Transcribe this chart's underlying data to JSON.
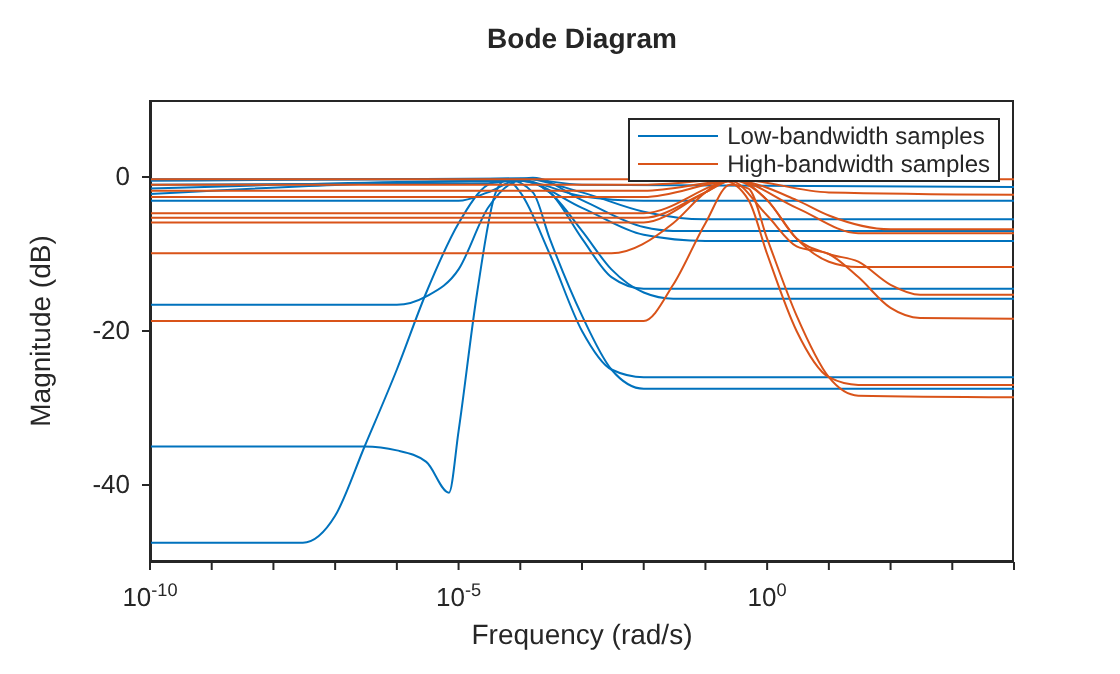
{
  "chart_data": {
    "type": "line",
    "title": "Bode Diagram",
    "xlabel": "Frequency (rad/s)",
    "ylabel": "Magnitude (dB)",
    "log": "x",
    "grid": false,
    "legend": "top right",
    "marker": "none",
    "line_style": "solid",
    "xlim": [
      1e-10,
      10000.0
    ],
    "ylim": [
      -50,
      10
    ],
    "xticks": [
      {
        "value": 1e-10,
        "label": "10$^{-10}$"
      },
      {
        "value": 1e-09,
        "label": null
      },
      {
        "value": 1e-08,
        "label": null
      },
      {
        "value": 1e-07,
        "label": null
      },
      {
        "value": 1e-06,
        "label": null
      },
      {
        "value": 1e-05,
        "label": "10$^{-5}$"
      },
      {
        "value": 0.0001,
        "label": null
      },
      {
        "value": 0.001,
        "label": null
      },
      {
        "value": 0.01,
        "label": null
      },
      {
        "value": 0.1,
        "label": null
      },
      {
        "value": 1,
        "label": "10$^{0}$"
      },
      {
        "value": 10,
        "label": null
      },
      {
        "value": 100,
        "label": null
      },
      {
        "value": 1000,
        "label": null
      },
      {
        "value": 10000,
        "label": null
      }
    ],
    "yticks": [
      -40,
      -20,
      0
    ],
    "series": [
      {
        "name": "Low-bandwidth samples",
        "color": "#0072bd",
        "x": [
          1e-10,
          1e-06,
          3e-06,
          1e-05,
          3e-05,
          0.0001,
          0.0003,
          0.001,
          0.003,
          0.01,
          0.03,
          10000.0
        ],
        "values": [
          -16.6,
          -16.6,
          -15.5,
          -12,
          -4,
          -0.5,
          -2,
          -8,
          -13,
          -14.5,
          -14.5,
          -14.5
        ]
      },
      {
        "color": "#0072bd",
        "x": [
          1e-10,
          3e-07,
          1e-06,
          3e-06,
          7e-06,
          1e-05,
          2e-05,
          4e-05,
          6e-05,
          0.0001,
          0.0003,
          0.001,
          0.003,
          0.01,
          10000.0
        ],
        "values": [
          -35,
          -35,
          -35.5,
          -37,
          -41,
          -33,
          -15,
          -2,
          -0.3,
          -2,
          -10,
          -20,
          -25,
          -26,
          -26
        ]
      },
      {
        "color": "#0072bd",
        "x": [
          1e-10,
          3e-08,
          1e-07,
          3e-07,
          1e-06,
          3e-06,
          1e-05,
          3e-05,
          6e-05,
          0.00016,
          0.0003,
          0.001,
          0.003,
          0.01,
          10000.0
        ],
        "values": [
          -47.5,
          -47.5,
          -44,
          -35,
          -25,
          -15,
          -6,
          -1,
          -0.3,
          -2,
          -8,
          -18,
          -25,
          -27.5,
          -27.5
        ]
      },
      {
        "color": "#0072bd",
        "x": [
          1e-10,
          1e-05,
          3e-05,
          0.0001,
          0.0003,
          0.001,
          0.003,
          0.01,
          0.03,
          10000.0
        ],
        "values": [
          -3.1,
          -3.1,
          -2,
          -0.3,
          -2,
          -7,
          -12,
          -15,
          -15.8,
          -15.8
        ]
      },
      {
        "color": "#0072bd",
        "x": [
          1e-10,
          1e-05,
          0.0001,
          0.001,
          0.01,
          0.1,
          10000.0
        ],
        "values": [
          -0.3,
          -0.3,
          -0.2,
          -2,
          -4.5,
          -5.5,
          -5.5
        ]
      },
      {
        "color": "#0072bd",
        "x": [
          1e-10,
          3e-05,
          0.00016,
          0.001,
          0.01,
          0.03,
          10000.0
        ],
        "values": [
          -1,
          -0.8,
          -0.1,
          -3,
          -6.5,
          -7,
          -7
        ]
      },
      {
        "color": "#0072bd",
        "x": [
          1e-10,
          0.0001,
          0.001,
          0.01,
          0.1,
          10000.0
        ],
        "values": [
          -1.5,
          -0.5,
          -4,
          -7.5,
          -8.3,
          -8.3
        ]
      },
      {
        "color": "#0072bd",
        "x": [
          1e-10,
          0.0001,
          0.001,
          10000.0
        ],
        "values": [
          -0.5,
          -0.2,
          -1,
          -1.3
        ]
      },
      {
        "color": "#0072bd",
        "x": [
          1e-10,
          0.0001,
          0.001,
          0.01,
          10000.0
        ],
        "values": [
          -2.2,
          -0.5,
          -2.5,
          -3.1,
          -3.1
        ]
      },
      {
        "name": "High-bandwidth samples",
        "color": "#d95319",
        "x": [
          1e-10,
          0.01,
          0.03,
          0.1,
          0.25,
          0.5,
          1,
          3,
          10,
          30,
          10000.0
        ],
        "values": [
          -18.7,
          -18.7,
          -14,
          -6,
          -1,
          -1.5,
          -8,
          -18,
          -26,
          -28.4,
          -28.6
        ]
      },
      {
        "color": "#d95319",
        "x": [
          1e-10,
          0.003,
          0.03,
          0.1,
          0.2,
          0.5,
          1,
          3,
          10,
          30,
          10000.0
        ],
        "values": [
          -9.9,
          -9.9,
          -6,
          -2,
          -0.5,
          -3,
          -10,
          -20,
          -26,
          -27,
          -27
        ]
      },
      {
        "color": "#d95319",
        "x": [
          1e-10,
          0.01,
          0.1,
          0.25,
          1,
          3,
          10,
          30,
          100,
          300,
          10000.0
        ],
        "values": [
          -5.9,
          -5.9,
          -2,
          -0.5,
          -5,
          -9,
          -10,
          -13,
          -17,
          -18.3,
          -18.4
        ]
      },
      {
        "color": "#d95319",
        "x": [
          1e-10,
          0.01,
          0.1,
          0.3,
          1,
          3,
          10,
          30,
          10000.0
        ],
        "values": [
          -5.3,
          -5.3,
          -2,
          -0.3,
          -3,
          -8,
          -11,
          -11.7,
          -11.7
        ]
      },
      {
        "color": "#d95319",
        "x": [
          1e-10,
          0.01,
          0.3,
          1,
          3,
          10,
          30,
          100,
          300,
          10000.0
        ],
        "values": [
          -4.7,
          -4.7,
          -0.5,
          -3,
          -8,
          -10,
          -11,
          -14,
          -15.3,
          -15.3
        ]
      },
      {
        "color": "#d95319",
        "x": [
          1e-10,
          0.01,
          0.3,
          3,
          10,
          100,
          10000.0
        ],
        "values": [
          -2.6,
          -2.6,
          -0.5,
          -3,
          -5,
          -6.8,
          -6.8
        ]
      },
      {
        "color": "#d95319",
        "x": [
          1e-10,
          0.01,
          0.3,
          3,
          30,
          10000.0
        ],
        "values": [
          -1.8,
          -1.8,
          -0.5,
          -4,
          -7.3,
          -7.3
        ]
      },
      {
        "color": "#d95319",
        "x": [
          1e-10,
          10000.0
        ],
        "values": [
          -0.3,
          -0.3
        ]
      },
      {
        "color": "#d95319",
        "x": [
          1e-10,
          0.01,
          0.3,
          10,
          10000.0
        ],
        "values": [
          -1,
          -1,
          -0.3,
          -2,
          -2.3
        ]
      }
    ]
  }
}
